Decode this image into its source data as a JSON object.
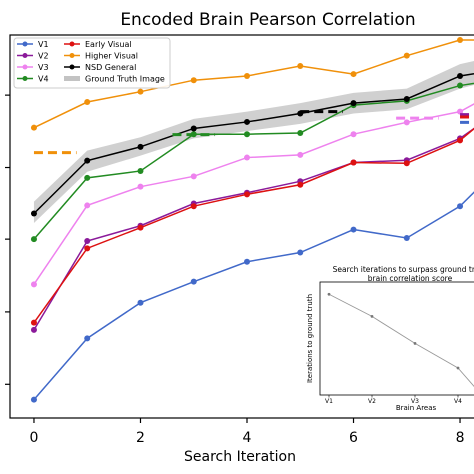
{
  "chart_data": [
    {
      "type": "line",
      "title": "Encoded Brain Pearson Correlation",
      "xlabel": "Search Iteration",
      "ylabel": "",
      "xlim": [
        -0.45,
        8.45
      ],
      "ylim": [
        0,
        1
      ],
      "xticks": [
        0,
        2,
        4,
        6,
        8
      ],
      "xtick_labels": [
        "0",
        "2",
        "4",
        "6",
        "8"
      ],
      "yticks": [
        0.088,
        0.277,
        0.467,
        0.654,
        0.843
      ],
      "x": [
        0,
        1,
        2,
        3,
        4,
        5,
        6,
        7,
        8,
        8.45
      ],
      "legend": {
        "placement": "top-left",
        "columns": 2
      },
      "series": [
        {
          "name": "V1",
          "color": "#4169c9",
          "values": [
            0.048,
            0.208,
            0.301,
            0.356,
            0.408,
            0.432,
            0.492,
            0.47,
            0.553,
            0.615
          ]
        },
        {
          "name": "V2",
          "color": "#8b1a9a",
          "values": [
            0.23,
            0.462,
            0.502,
            0.56,
            0.588,
            0.618,
            0.667,
            0.673,
            0.73,
            0.774
          ]
        },
        {
          "name": "V3",
          "color": "#ee82ee",
          "values": [
            0.349,
            0.555,
            0.604,
            0.631,
            0.68,
            0.687,
            0.741,
            0.772,
            0.8,
            0.834
          ]
        },
        {
          "name": "V4",
          "color": "#228b22",
          "values": [
            0.467,
            0.627,
            0.645,
            0.741,
            0.741,
            0.744,
            0.817,
            0.828,
            0.868,
            0.878
          ]
        },
        {
          "name": "Early Visual",
          "color": "#dd1111",
          "values": [
            0.249,
            0.443,
            0.497,
            0.553,
            0.584,
            0.609,
            0.667,
            0.665,
            0.725,
            0.777
          ]
        },
        {
          "name": "Higher Visual",
          "color": "#f0900a",
          "values": [
            0.758,
            0.825,
            0.852,
            0.882,
            0.893,
            0.919,
            0.898,
            0.946,
            0.987,
            0.987
          ]
        },
        {
          "name": "NSD General",
          "color": "#000000",
          "values": [
            0.534,
            0.672,
            0.708,
            0.756,
            0.773,
            0.795,
            0.822,
            0.833,
            0.893,
            0.903
          ]
        }
      ],
      "ground_truth": {
        "name": "Ground Truth Image",
        "color": "#aaaaaa",
        "band_lower": [
          0.509,
          0.643,
          0.685,
          0.73,
          0.749,
          0.768,
          0.795,
          0.806,
          0.86,
          0.876
        ],
        "band_upper": [
          0.565,
          0.698,
          0.733,
          0.781,
          0.8,
          0.822,
          0.849,
          0.86,
          0.924,
          0.938
        ],
        "dashes": [
          {
            "series": "Higher Visual",
            "color": "#f0900a",
            "x": [
              0.0,
              0.8
            ],
            "y": 0.693
          },
          {
            "series": "V4",
            "color": "#228b22",
            "x": [
              2.6,
              3.4
            ],
            "y": 0.74
          },
          {
            "series": "NSD General",
            "color": "#000000",
            "x": [
              5.0,
              5.8
            ],
            "y": 0.8
          },
          {
            "series": "V3",
            "color": "#ee82ee",
            "x": [
              6.8,
              7.6
            ],
            "y": 0.783
          },
          {
            "series": "V2",
            "color": "#8b1a9a",
            "x": [
              8.0,
              8.45
            ],
            "y": 0.792
          },
          {
            "series": "Early Visual",
            "color": "#dd1111",
            "x": [
              8.0,
              8.45
            ],
            "y": 0.786
          },
          {
            "series": "V1",
            "color": "#4169c9",
            "x": [
              8.0,
              8.45
            ],
            "y": 0.772
          }
        ]
      }
    },
    {
      "type": "line",
      "title": "Search iterations to surpass ground truth\nbrain correlation score",
      "xlabel": "Brain Areas",
      "ylabel": "Iterations to ground truth",
      "categories": [
        "V1",
        "V2",
        "V3",
        "V4"
      ],
      "x": [
        0,
        1,
        2,
        3,
        3.45
      ],
      "values": [
        9,
        7.2,
        5.0,
        3.0,
        1.2
      ],
      "ylim": [
        0.8,
        10
      ],
      "color": "#999999"
    }
  ]
}
